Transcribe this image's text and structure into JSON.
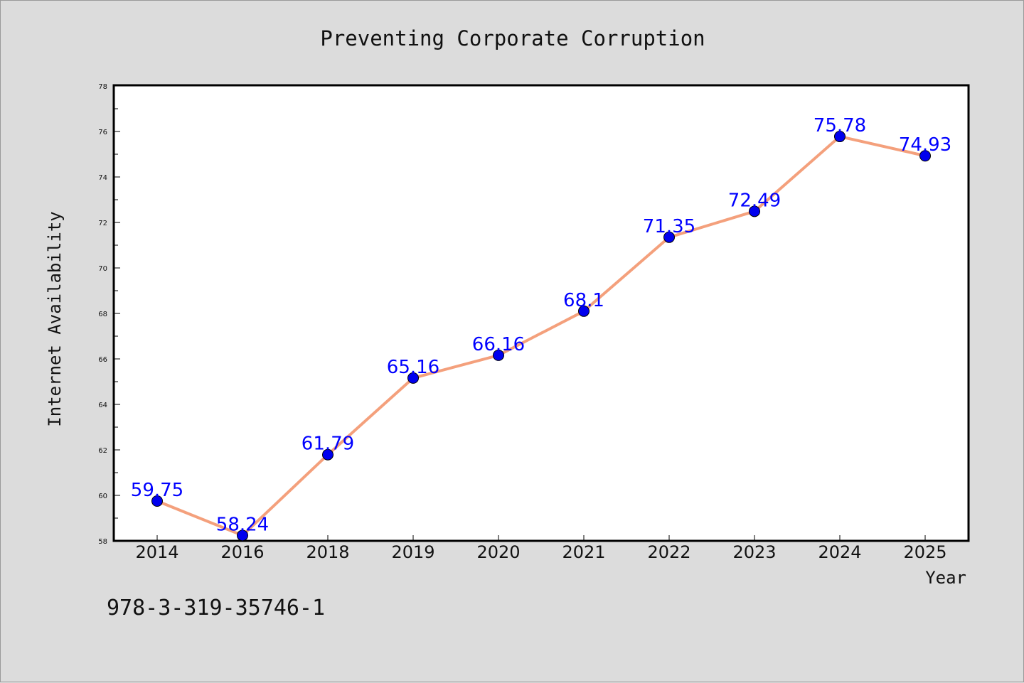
{
  "figure": {
    "background": "#dcdcdc",
    "footer_text": "978-3-319-35746-1"
  },
  "chart_data": {
    "type": "line",
    "title": "Preventing Corporate Corruption",
    "xlabel": "Year",
    "ylabel": "Internet Availability",
    "categories": [
      "2014",
      "2016",
      "2018",
      "2019",
      "2020",
      "2021",
      "2022",
      "2023",
      "2024",
      "2025"
    ],
    "series": [
      {
        "values": [
          59.75,
          58.24,
          61.79,
          65.16,
          66.16,
          68.1,
          71.35,
          72.49,
          75.78,
          74.93
        ],
        "labels": [
          "59.75",
          "58.24",
          "61.79",
          "65.16",
          "66.16",
          "68.1",
          "71.35",
          "72.49",
          "75.78",
          "74.93"
        ],
        "line_color": "#f4a07c",
        "marker_color": "#0000ee",
        "label_color": "#0000ff"
      }
    ],
    "ylim": [
      58,
      78
    ],
    "yticks": [
      58,
      60,
      62,
      64,
      66,
      68,
      70,
      72,
      74,
      76,
      78
    ],
    "grid": false,
    "legend": "none",
    "plot_background": "#ffffff"
  }
}
